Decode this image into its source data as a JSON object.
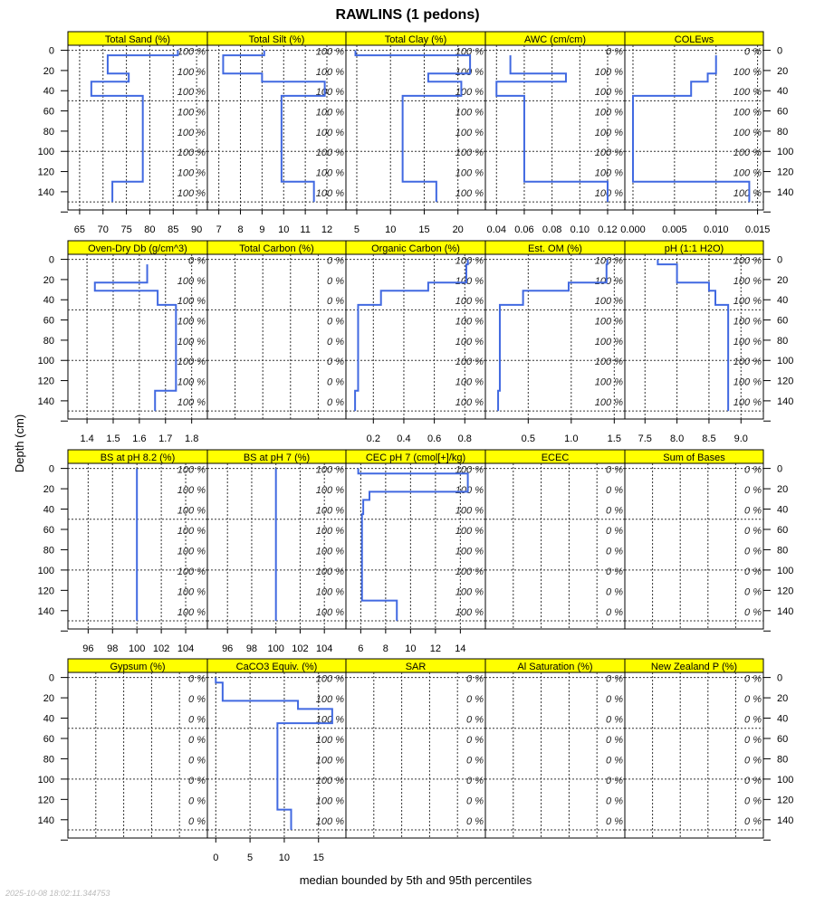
{
  "chart_data": {
    "type": "line",
    "title": "RAWLINS (1 pedons)",
    "xlabel": "median bounded by 5th and 95th percentiles",
    "ylabel": "Depth (cm)",
    "timestamp": "2025-10-08 18:02:11.344753",
    "ylim": [
      -5,
      158
    ],
    "depth_ticks": [
      "0",
      "20",
      "40",
      "60",
      "80",
      "100",
      "120",
      "140"
    ],
    "depth_tick_values": [
      0,
      20,
      40,
      60,
      80,
      100,
      120,
      140,
      160
    ],
    "depth_grid": [
      0,
      50,
      100,
      150
    ],
    "horizon_depths": [
      0,
      5,
      23,
      31,
      45,
      130,
      150
    ],
    "line_color": "#4169E1",
    "strip_color": "#FFFF00",
    "panels": [
      {
        "name": "Total Sand (%)",
        "xlim": [
          62.5,
          92.3
        ],
        "xticks": [
          "65",
          "70",
          "75",
          "80",
          "85",
          "90"
        ],
        "values": [
          86,
          71,
          75.5,
          67.5,
          78.5,
          72
        ],
        "pct": [
          "100 %",
          "100 %",
          "100 %",
          "100 %",
          "100 %",
          "100 %",
          "100 %",
          "100 %"
        ]
      },
      {
        "name": "Total Silt (%)",
        "xlim": [
          6.47,
          12.88
        ],
        "xticks": [
          "7",
          "8",
          "9",
          "10",
          "11",
          "12"
        ],
        "values": [
          9.1,
          7.2,
          9.0,
          11.9,
          9.9,
          11.4
        ],
        "pct": [
          "100 %",
          "100 %",
          "100 %",
          "100 %",
          "100 %",
          "100 %",
          "100 %",
          "100 %"
        ]
      },
      {
        "name": "Total Clay (%)",
        "xlim": [
          3.39,
          24.07
        ],
        "xticks": [
          "5",
          "10",
          "15",
          "20"
        ],
        "values": [
          4.8,
          21.8,
          15.6,
          20.5,
          11.8,
          16.8
        ],
        "pct": [
          "100 %",
          "100 %",
          "100 %",
          "100 %",
          "100 %",
          "100 %",
          "100 %",
          "100 %"
        ]
      },
      {
        "name": "AWC (cm/cm)",
        "xlim": [
          0.032,
          0.1324
        ],
        "xticks": [
          "0.04",
          "0.06",
          "0.08",
          "0.10",
          "0.12"
        ],
        "values": [
          null,
          0.05,
          0.09,
          0.04,
          0.06,
          0.12
        ],
        "pct": [
          "0 %",
          "100 %",
          "100 %",
          "100 %",
          "100 %",
          "100 %",
          "100 %",
          "100 %"
        ]
      },
      {
        "name": "COLEws",
        "xlim": [
          -0.00098,
          0.0157
        ],
        "xticks": [
          "0.000",
          "0.005",
          "0.010",
          "0.015"
        ],
        "values": [
          null,
          0.01,
          0.009,
          0.007,
          0.0,
          0.014
        ],
        "pct": [
          "0 %",
          "100 %",
          "100 %",
          "100 %",
          "100 %",
          "100 %",
          "100 %",
          "100 %"
        ]
      },
      {
        "name": "Oven-Dry Db (g/cm^3)",
        "xlim": [
          1.327,
          1.86
        ],
        "xticks": [
          "1.4",
          "1.5",
          "1.6",
          "1.7",
          "1.8"
        ],
        "values": [
          null,
          1.63,
          1.43,
          1.67,
          1.74,
          1.66
        ],
        "pct": [
          "0 %",
          "100 %",
          "100 %",
          "100 %",
          "100 %",
          "100 %",
          "100 %",
          "100 %"
        ]
      },
      {
        "name": "Total Carbon (%)",
        "xlim": null,
        "xticks": [],
        "values": [],
        "pct": [
          "0 %",
          "0 %",
          "0 %",
          "0 %",
          "0 %",
          "0 %",
          "0 %",
          "0 %"
        ]
      },
      {
        "name": "Organic Carbon (%)",
        "xlim": [
          0.02,
          0.935
        ],
        "xticks": [
          "0.2",
          "0.4",
          "0.6",
          "0.8"
        ],
        "values": [
          0.82,
          0.81,
          0.56,
          0.25,
          0.1,
          0.08
        ],
        "pct": [
          "100 %",
          "100 %",
          "100 %",
          "100 %",
          "100 %",
          "100 %",
          "100 %",
          "100 %"
        ]
      },
      {
        "name": "Est. OM (%)",
        "xlim": [
          0.002,
          1.623
        ],
        "xticks": [
          "0.5",
          "1.0",
          "1.5"
        ],
        "values": [
          1.42,
          1.41,
          0.97,
          0.44,
          0.17,
          0.15
        ],
        "pct": [
          "100 %",
          "100 %",
          "100 %",
          "100 %",
          "100 %",
          "100 %",
          "100 %",
          "100 %"
        ]
      },
      {
        "name": "pH (1:1 H2O)",
        "xlim": [
          7.185,
          9.35
        ],
        "xticks": [
          "7.5",
          "8.0",
          "8.5",
          "9.0"
        ],
        "values": [
          7.7,
          8.0,
          8.5,
          8.6,
          8.8,
          8.8
        ],
        "pct": [
          "100 %",
          "100 %",
          "100 %",
          "100 %",
          "100 %",
          "100 %",
          "100 %",
          "100 %"
        ]
      },
      {
        "name": "BS at pH 8.2 (%)",
        "xlim": [
          94.34,
          105.78
        ],
        "xticks": [
          "96",
          "98",
          "100",
          "102",
          "104"
        ],
        "values": [
          100,
          100,
          100,
          100,
          100,
          100
        ],
        "pct": [
          "100 %",
          "100 %",
          "100 %",
          "100 %",
          "100 %",
          "100 %",
          "100 %",
          "100 %"
        ]
      },
      {
        "name": "BS at pH 7 (%)",
        "xlim": [
          94.34,
          105.78
        ],
        "xticks": [
          "96",
          "98",
          "100",
          "102",
          "104"
        ],
        "values": [
          100,
          100,
          100,
          100,
          100,
          100
        ],
        "pct": [
          "100 %",
          "100 %",
          "100 %",
          "100 %",
          "100 %",
          "100 %",
          "100 %",
          "100 %"
        ]
      },
      {
        "name": "CEC pH 7 (cmol[+]/kg)",
        "xlim": [
          4.81,
          16.01
        ],
        "xticks": [
          "6",
          "8",
          "10",
          "12",
          "14"
        ],
        "values": [
          5.8,
          14.6,
          6.7,
          6.2,
          6.1,
          8.9
        ],
        "pct": [
          "100 %",
          "100 %",
          "100 %",
          "100 %",
          "100 %",
          "100 %",
          "100 %",
          "100 %"
        ]
      },
      {
        "name": "ECEC",
        "xlim": null,
        "xticks": [],
        "values": [],
        "pct": [
          "0 %",
          "0 %",
          "0 %",
          "0 %",
          "0 %",
          "0 %",
          "0 %",
          "0 %"
        ]
      },
      {
        "name": "Sum of Bases",
        "xlim": null,
        "xticks": [],
        "values": [],
        "pct": [
          "0 %",
          "0 %",
          "0 %",
          "0 %",
          "0 %",
          "0 %",
          "0 %",
          "0 %"
        ]
      },
      {
        "name": "Gypsum (%)",
        "xlim": null,
        "xticks": [],
        "values": [],
        "pct": [
          "0 %",
          "0 %",
          "0 %",
          "0 %",
          "0 %",
          "0 %",
          "0 %",
          "0 %"
        ]
      },
      {
        "name": "CaCO3 Equiv. (%)",
        "xlim": [
          -1.23,
          19.0
        ],
        "xticks": [
          "0",
          "5",
          "10",
          "15"
        ],
        "values": [
          0,
          1,
          12,
          17,
          9,
          11
        ],
        "pct": [
          "100 %",
          "100 %",
          "100 %",
          "100 %",
          "100 %",
          "100 %",
          "100 %",
          "100 %"
        ]
      },
      {
        "name": "SAR",
        "xlim": null,
        "xticks": [],
        "values": [],
        "pct": [
          "0 %",
          "0 %",
          "0 %",
          "0 %",
          "0 %",
          "0 %",
          "0 %",
          "0 %"
        ]
      },
      {
        "name": "Al Saturation (%)",
        "xlim": null,
        "xticks": [],
        "values": [],
        "pct": [
          "0 %",
          "0 %",
          "0 %",
          "0 %",
          "0 %",
          "0 %",
          "0 %",
          "0 %"
        ]
      },
      {
        "name": "New Zealand P (%)",
        "xlim": null,
        "xticks": [],
        "values": [],
        "pct": [
          "0 %",
          "0 %",
          "0 %",
          "0 %",
          "0 %",
          "0 %",
          "0 %",
          "0 %"
        ]
      }
    ]
  }
}
